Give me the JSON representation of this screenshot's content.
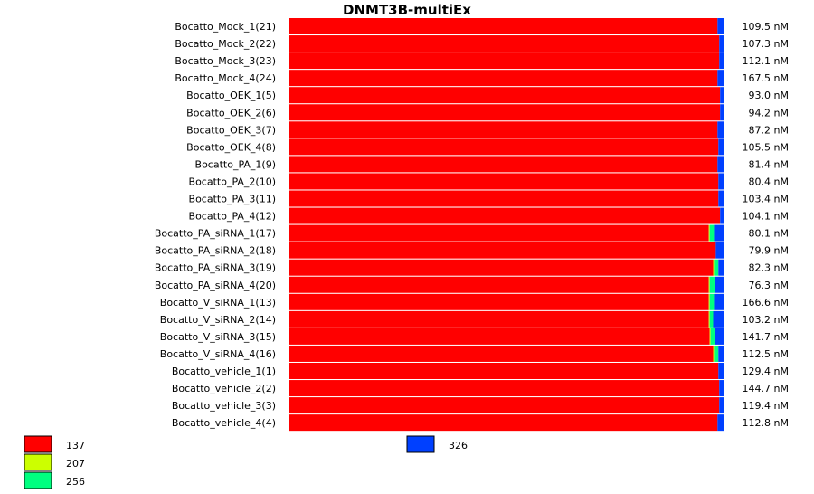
{
  "chart_data": {
    "type": "bar",
    "orientation": "horizontal",
    "stacked": true,
    "normalized": true,
    "title": "DNMT3B-multiEx",
    "categories": [
      "Bocatto_Mock_1(21)",
      "Bocatto_Mock_2(22)",
      "Bocatto_Mock_3(23)",
      "Bocatto_Mock_4(24)",
      "Bocatto_OEK_1(5)",
      "Bocatto_OEK_2(6)",
      "Bocatto_OEK_3(7)",
      "Bocatto_OEK_4(8)",
      "Bocatto_PA_1(9)",
      "Bocatto_PA_2(10)",
      "Bocatto_PA_3(11)",
      "Bocatto_PA_4(12)",
      "Bocatto_PA_siRNA_1(17)",
      "Bocatto_PA_siRNA_2(18)",
      "Bocatto_PA_siRNA_3(19)",
      "Bocatto_PA_siRNA_4(20)",
      "Bocatto_V_siRNA_1(13)",
      "Bocatto_V_siRNA_2(14)",
      "Bocatto_V_siRNA_3(15)",
      "Bocatto_V_siRNA_4(16)",
      "Bocatto_vehicle_1(1)",
      "Bocatto_vehicle_2(2)",
      "Bocatto_vehicle_3(3)",
      "Bocatto_vehicle_4(4)"
    ],
    "row_totals": [
      "109.5 nM",
      "107.3 nM",
      "112.1 nM",
      "167.5 nM",
      "93.0 nM",
      "94.2 nM",
      "87.2 nM",
      "105.5 nM",
      "81.4 nM",
      "80.4 nM",
      "103.4 nM",
      "104.1 nM",
      "80.1 nM",
      "79.9 nM",
      "82.3 nM",
      "76.3 nM",
      "166.6 nM",
      "103.2 nM",
      "141.7 nM",
      "112.5 nM",
      "129.4 nM",
      "144.7 nM",
      "119.4 nM",
      "112.8 nM"
    ],
    "series": [
      {
        "name": "137",
        "color": "#ff0000",
        "values": [
          0.984,
          0.988,
          0.988,
          0.984,
          0.99,
          0.99,
          0.984,
          0.986,
          0.984,
          0.986,
          0.986,
          0.99,
          0.964,
          0.98,
          0.974,
          0.964,
          0.964,
          0.964,
          0.966,
          0.974,
          0.986,
          0.988,
          0.988,
          0.984
        ]
      },
      {
        "name": "207",
        "color": "#ccff00",
        "values": [
          0,
          0,
          0,
          0,
          0,
          0,
          0,
          0,
          0,
          0,
          0,
          0,
          0.002,
          0,
          0.002,
          0.002,
          0.002,
          0.002,
          0.002,
          0.002,
          0,
          0,
          0,
          0
        ]
      },
      {
        "name": "256",
        "color": "#00ff80",
        "values": [
          0,
          0,
          0,
          0,
          0,
          0,
          0,
          0,
          0,
          0,
          0,
          0,
          0.01,
          0,
          0.01,
          0.012,
          0.01,
          0.008,
          0.01,
          0.01,
          0,
          0,
          0,
          0
        ]
      },
      {
        "name": "326",
        "color": "#0040ff",
        "values": [
          0.016,
          0.012,
          0.012,
          0.016,
          0.01,
          0.01,
          0.016,
          0.014,
          0.016,
          0.014,
          0.014,
          0.01,
          0.024,
          0.02,
          0.014,
          0.022,
          0.024,
          0.026,
          0.022,
          0.014,
          0.014,
          0.012,
          0.012,
          0.016
        ]
      }
    ],
    "legend": [
      {
        "label": "137",
        "color": "#ff0000"
      },
      {
        "label": "207",
        "color": "#ccff00"
      },
      {
        "label": "256",
        "color": "#00ff80"
      },
      {
        "label": "326",
        "color": "#0040ff"
      }
    ],
    "xlim": [
      0,
      1
    ],
    "grid": false
  }
}
